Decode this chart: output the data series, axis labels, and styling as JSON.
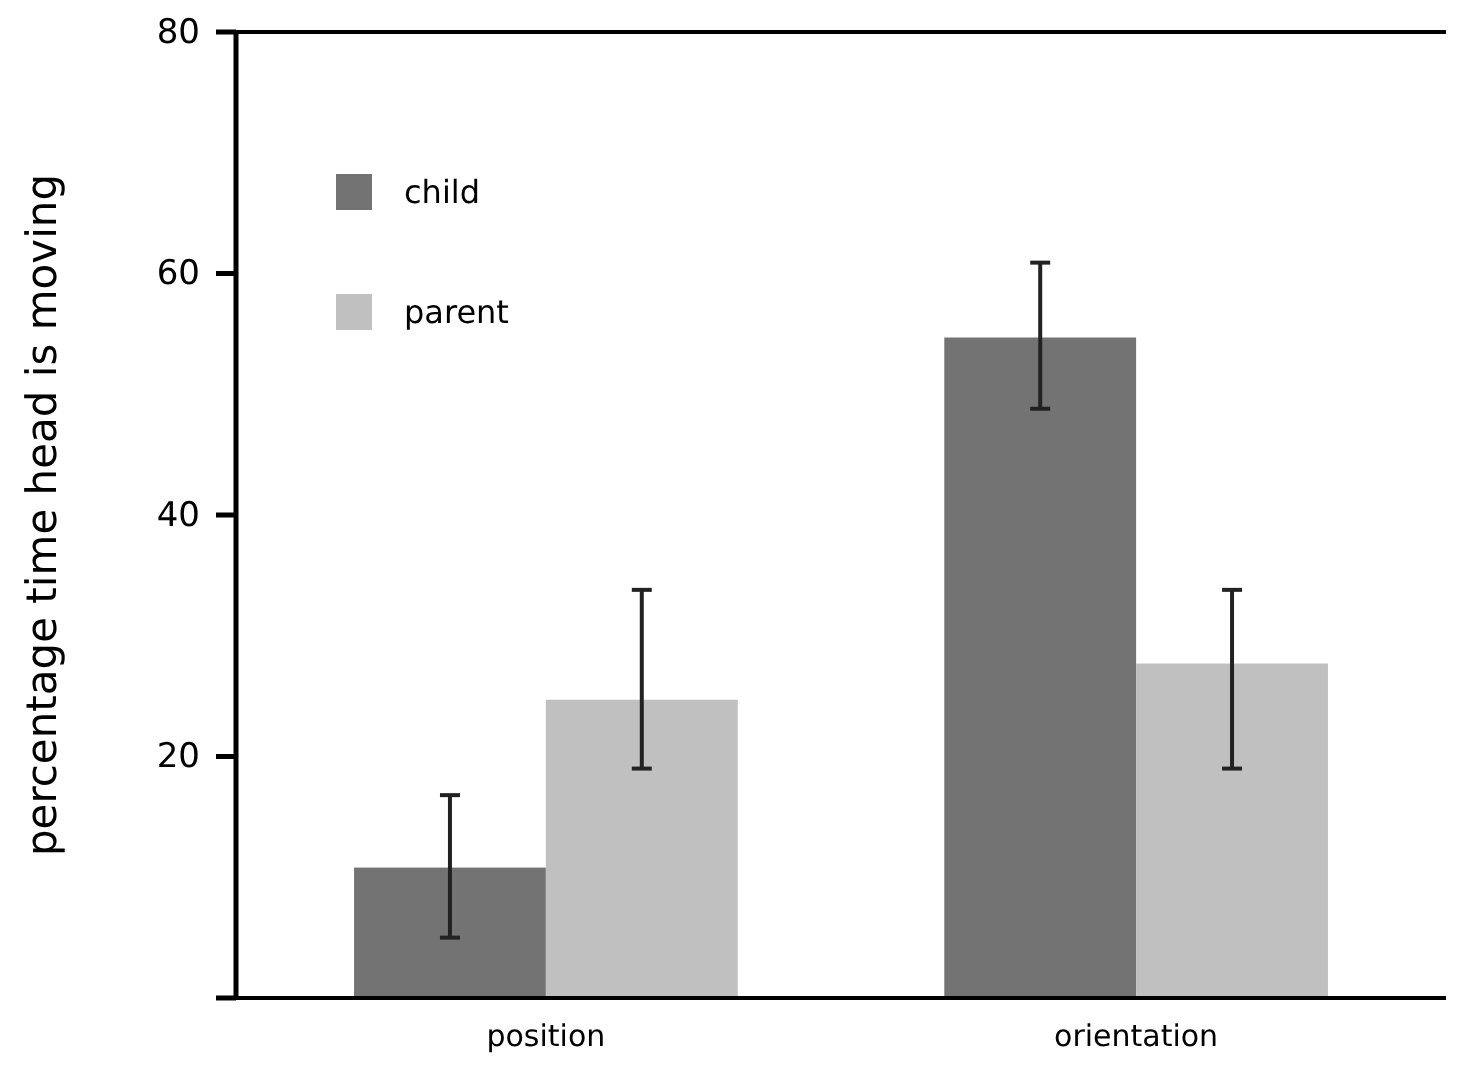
{
  "chart_data": {
    "type": "bar",
    "ylabel": "percentage time head is moving",
    "categories": [
      "position",
      "orientation"
    ],
    "series": [
      {
        "name": "child",
        "color": "#737373",
        "values": [
          10.8,
          54.7
        ],
        "errors": [
          [
            5.0,
            16.8
          ],
          [
            48.8,
            60.9
          ]
        ]
      },
      {
        "name": "parent",
        "color": "#c0c0c0",
        "values": [
          24.7,
          27.7
        ],
        "errors": [
          [
            19.0,
            33.8
          ],
          [
            19.0,
            33.8
          ]
        ]
      }
    ],
    "ylim": [
      0,
      80
    ],
    "yticks": [
      {
        "value": 0,
        "label": null
      },
      20,
      40,
      60,
      80
    ],
    "legend": "top left",
    "grid": false
  }
}
